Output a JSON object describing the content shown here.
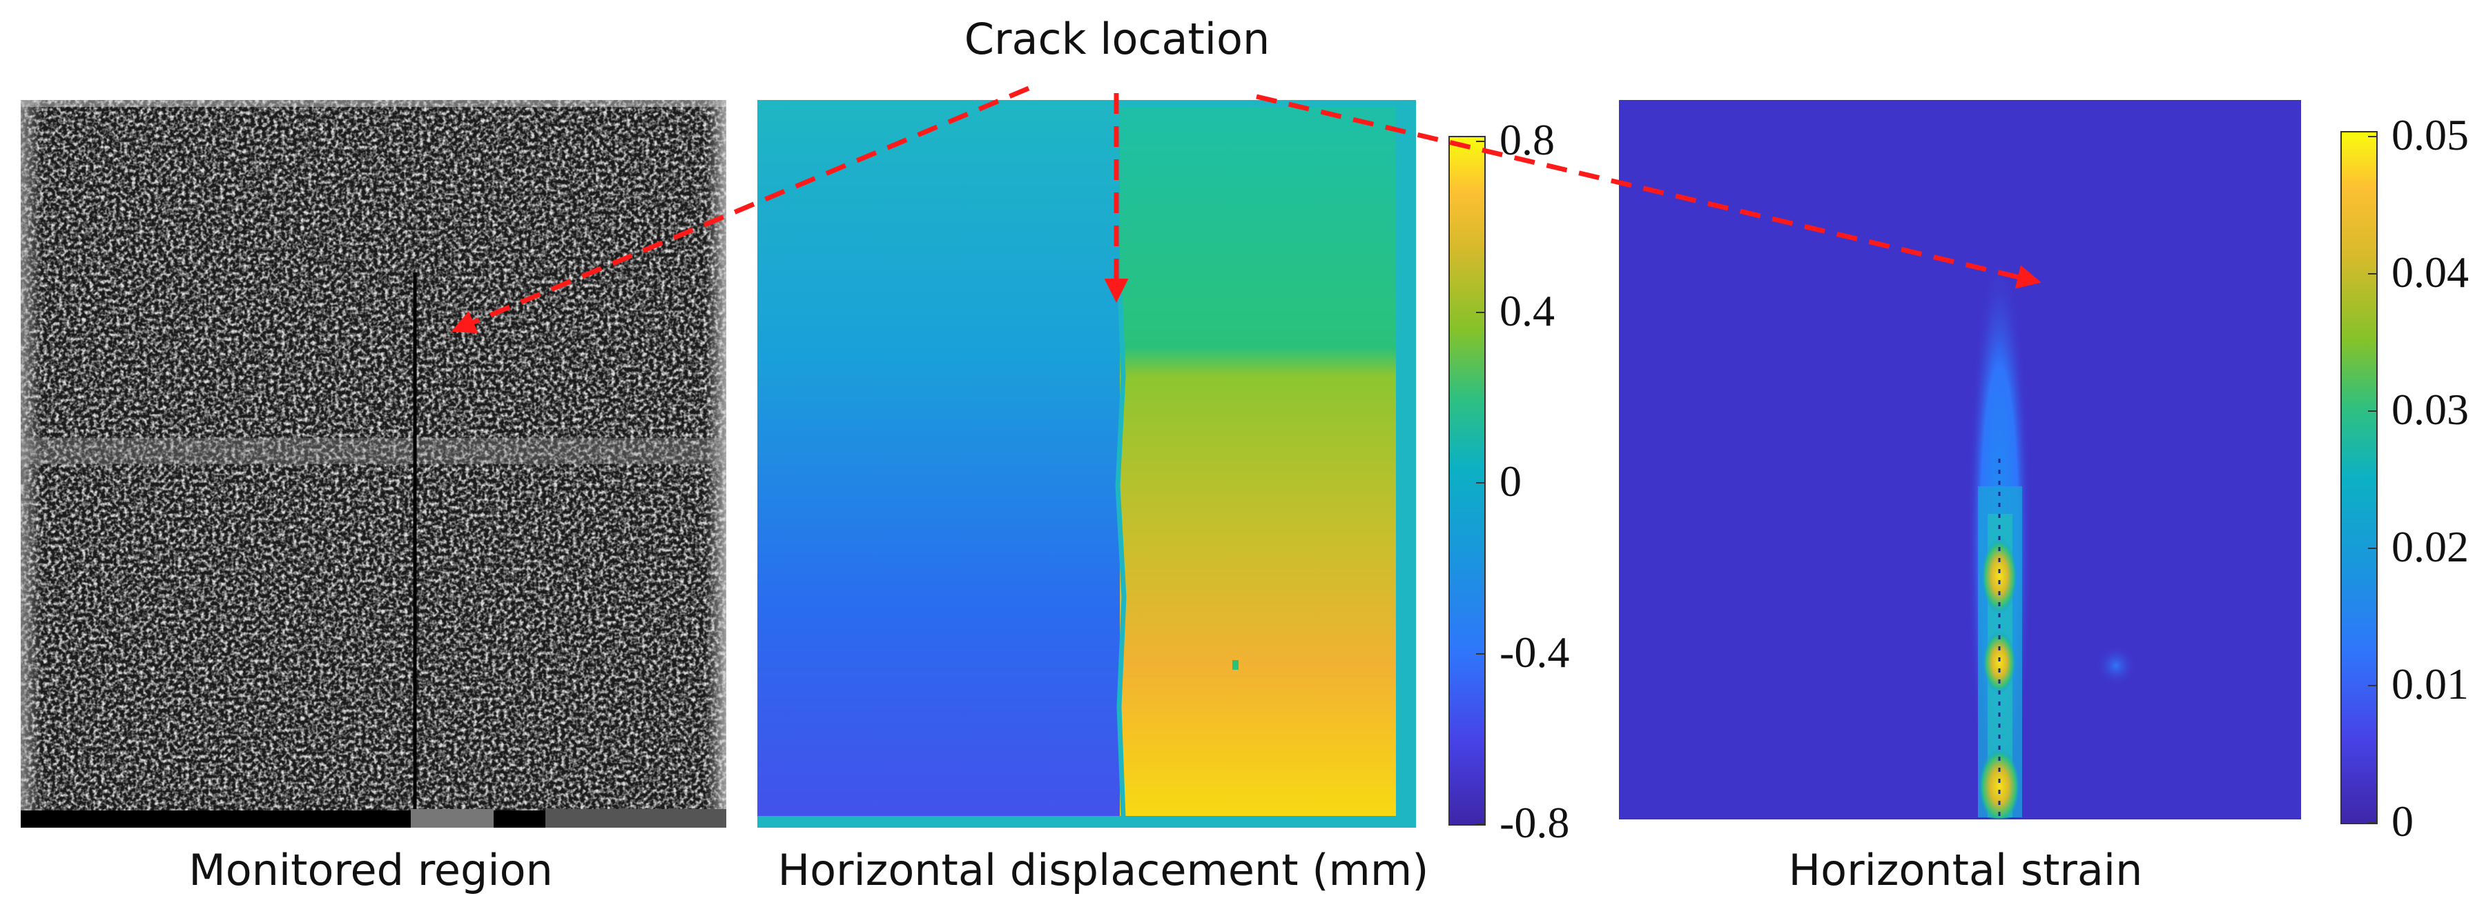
{
  "annotation": {
    "label": "Crack location",
    "arrow_color": "#ff1a1a"
  },
  "panels": [
    {
      "caption": "Monitored region"
    },
    {
      "caption": "Horizontal displacement (mm)"
    },
    {
      "caption": "Horizontal strain"
    }
  ],
  "colorbars": [
    {
      "ticks": [
        "0.8",
        "0.4",
        "0",
        "-0.4",
        "-0.8"
      ]
    },
    {
      "ticks": [
        "0.05",
        "0.04",
        "0.03",
        "0.02",
        "0.01",
        "0"
      ]
    }
  ],
  "colormap": [
    "#3e26a8",
    "#4742e6",
    "#2f76fb",
    "#1998db",
    "#0cb1c3",
    "#2fc080",
    "#85c22a",
    "#d7ba2b",
    "#fdc033",
    "#f9fb0e"
  ]
}
